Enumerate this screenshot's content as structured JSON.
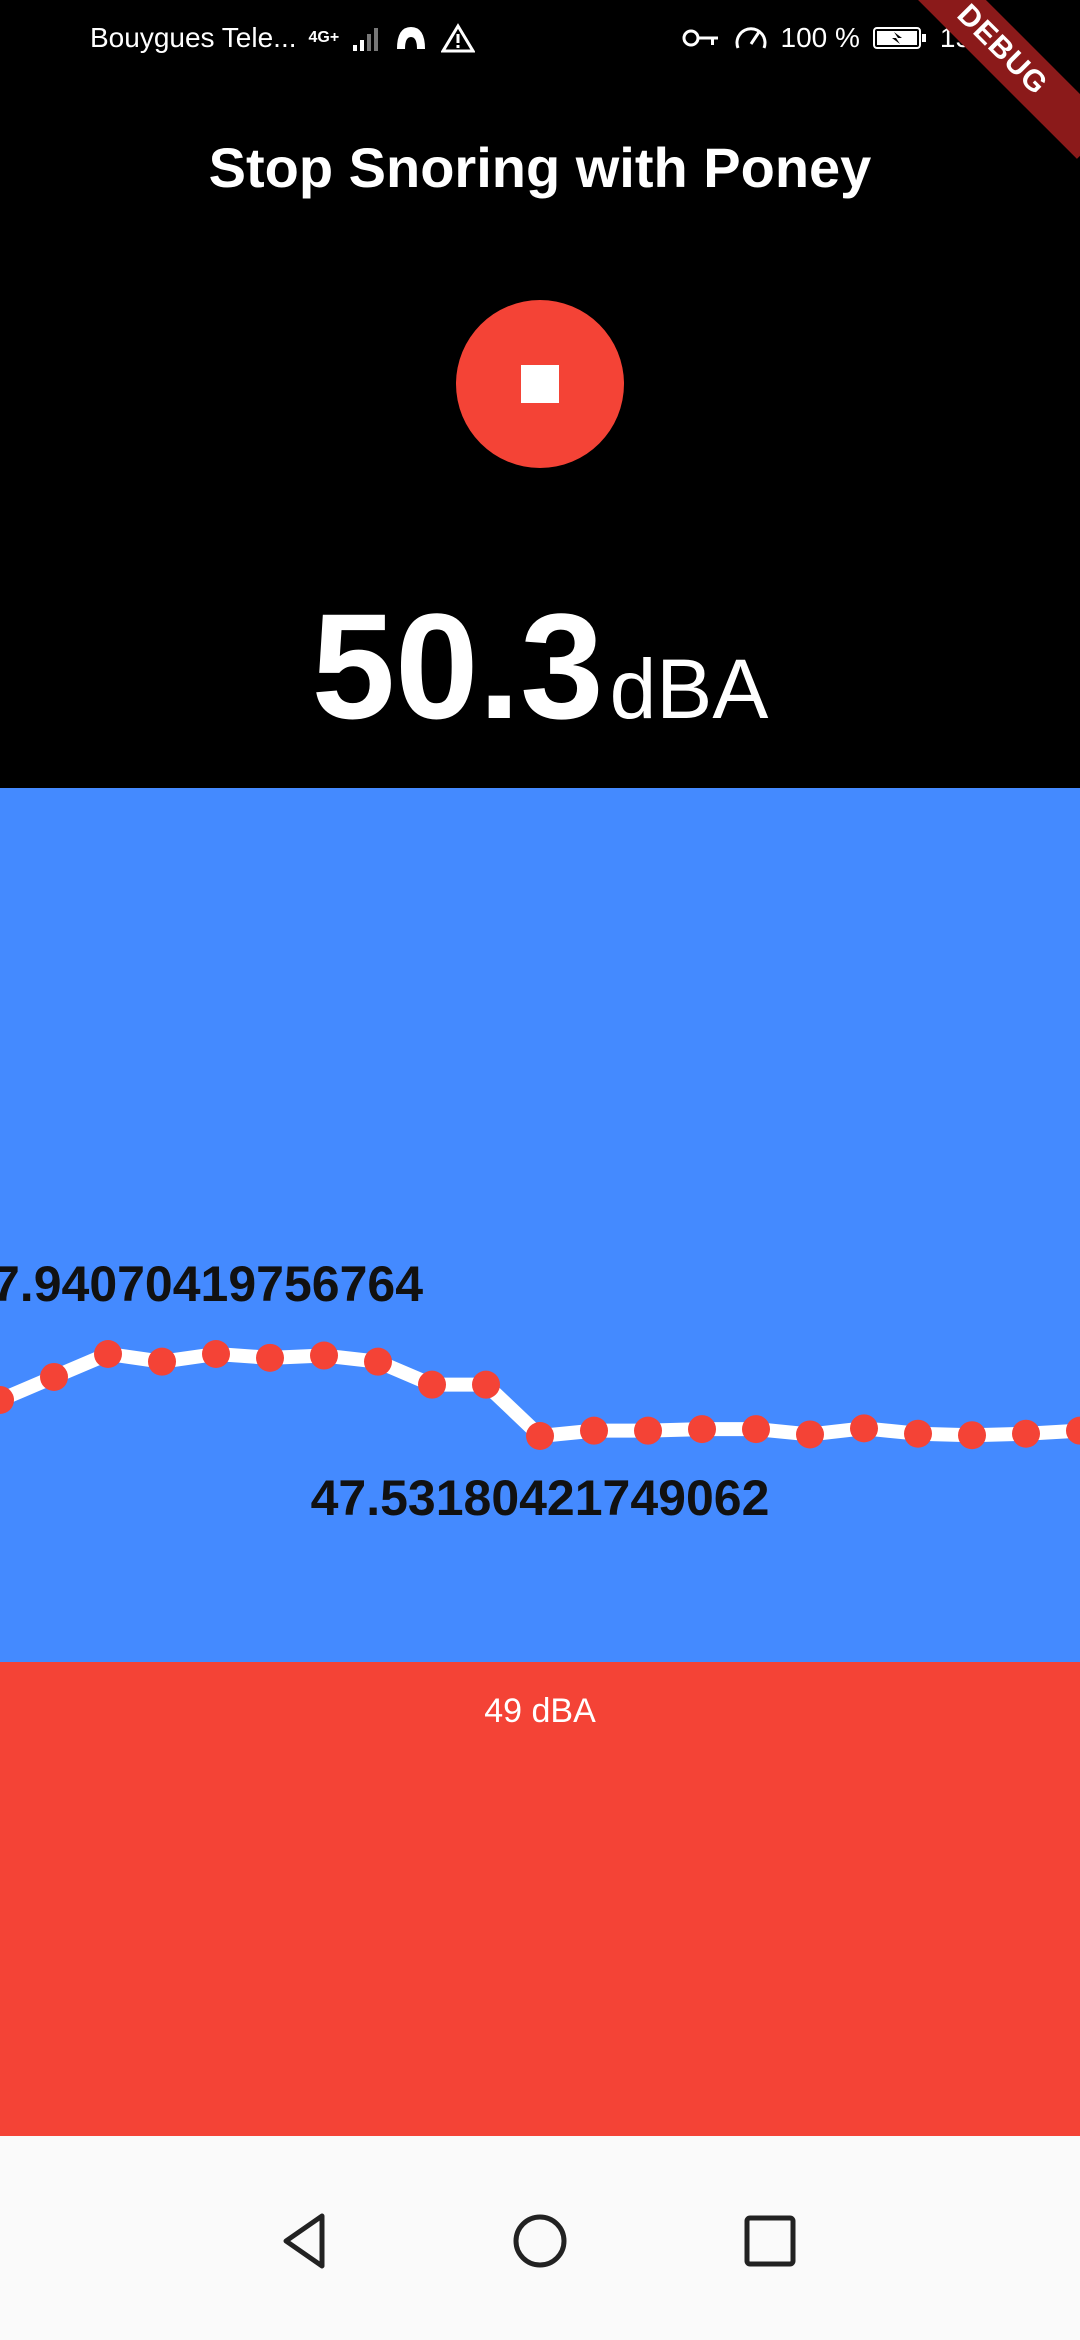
{
  "status_bar": {
    "carrier": "Bouygues Tele...",
    "network": "4G+",
    "battery": "100 %",
    "time": "15:49"
  },
  "debug_banner": "DEBUG",
  "app": {
    "title": "Stop Snoring with Poney",
    "level_value": "50.3",
    "level_unit": "dBA",
    "threshold_label": "49 dBA"
  },
  "chart_data": {
    "type": "line",
    "values": [
      48.0,
      48.3,
      48.6,
      48.5,
      48.6,
      48.55,
      48.58,
      48.5,
      48.2,
      48.2,
      47.53,
      47.6,
      47.6,
      47.62,
      47.62,
      47.55,
      47.63,
      47.56,
      47.54,
      47.56,
      47.6
    ],
    "annotations": [
      "7.94070419756764",
      "47.53180421749062"
    ],
    "colors": {
      "line": "#ffffff",
      "points": "#f44336",
      "background": "#448aff"
    }
  },
  "nav": {
    "back": "back-icon",
    "home": "home-icon",
    "recents": "recents-icon"
  }
}
